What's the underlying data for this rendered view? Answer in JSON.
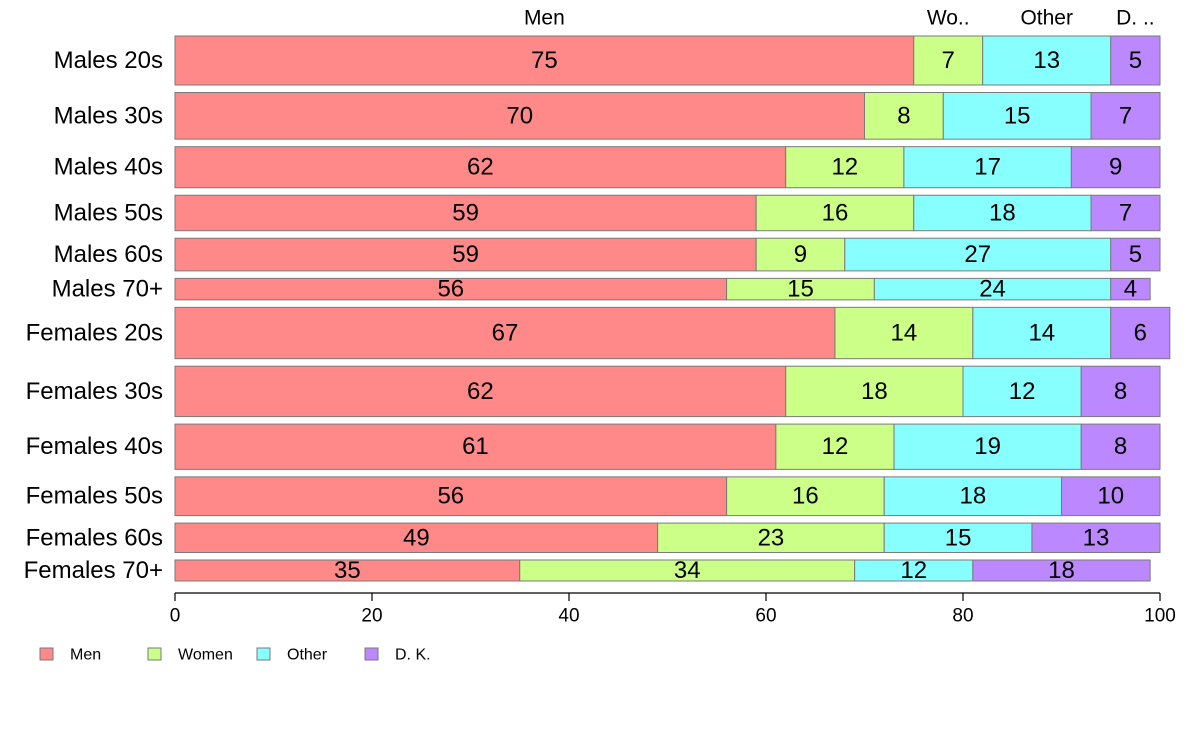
{
  "chart_data": {
    "type": "bar",
    "orientation": "horizontal",
    "stacked": true,
    "categories": [
      "Males 20s",
      "Males 30s",
      "Males 40s",
      "Males 50s",
      "Males 60s",
      "Males 70+",
      "Females 20s",
      "Females 30s",
      "Females 40s",
      "Females 50s",
      "Females 60s",
      "Females 70+"
    ],
    "series": [
      {
        "name": "Men",
        "color": "#ff8888",
        "values": [
          75,
          70,
          62,
          59,
          59,
          56,
          67,
          62,
          61,
          56,
          49,
          35
        ]
      },
      {
        "name": "Women",
        "color": "#ccff88",
        "values": [
          7,
          8,
          12,
          16,
          9,
          15,
          14,
          18,
          12,
          16,
          23,
          34
        ]
      },
      {
        "name": "Other",
        "color": "#88ffff",
        "values": [
          13,
          15,
          17,
          18,
          27,
          24,
          14,
          12,
          19,
          18,
          15,
          12
        ]
      },
      {
        "name": "D. K.",
        "color": "#bb88ff",
        "values": [
          5,
          7,
          9,
          7,
          5,
          4,
          6,
          8,
          8,
          10,
          13,
          18
        ]
      }
    ],
    "row_weights": [
      1.05,
      1.0,
      0.88,
      0.76,
      0.7,
      0.46,
      1.1,
      1.08,
      0.97,
      0.83,
      0.63,
      0.45
    ],
    "column_headers": [
      "Men",
      "Wo..",
      "Other",
      "D. .."
    ],
    "x_ticks": [
      "0",
      "20",
      "40",
      "60",
      "80",
      "100"
    ],
    "xlim": [
      0,
      100
    ],
    "legend_position": "bottom-left",
    "grid": false,
    "title": "",
    "xlabel": "",
    "ylabel": ""
  }
}
